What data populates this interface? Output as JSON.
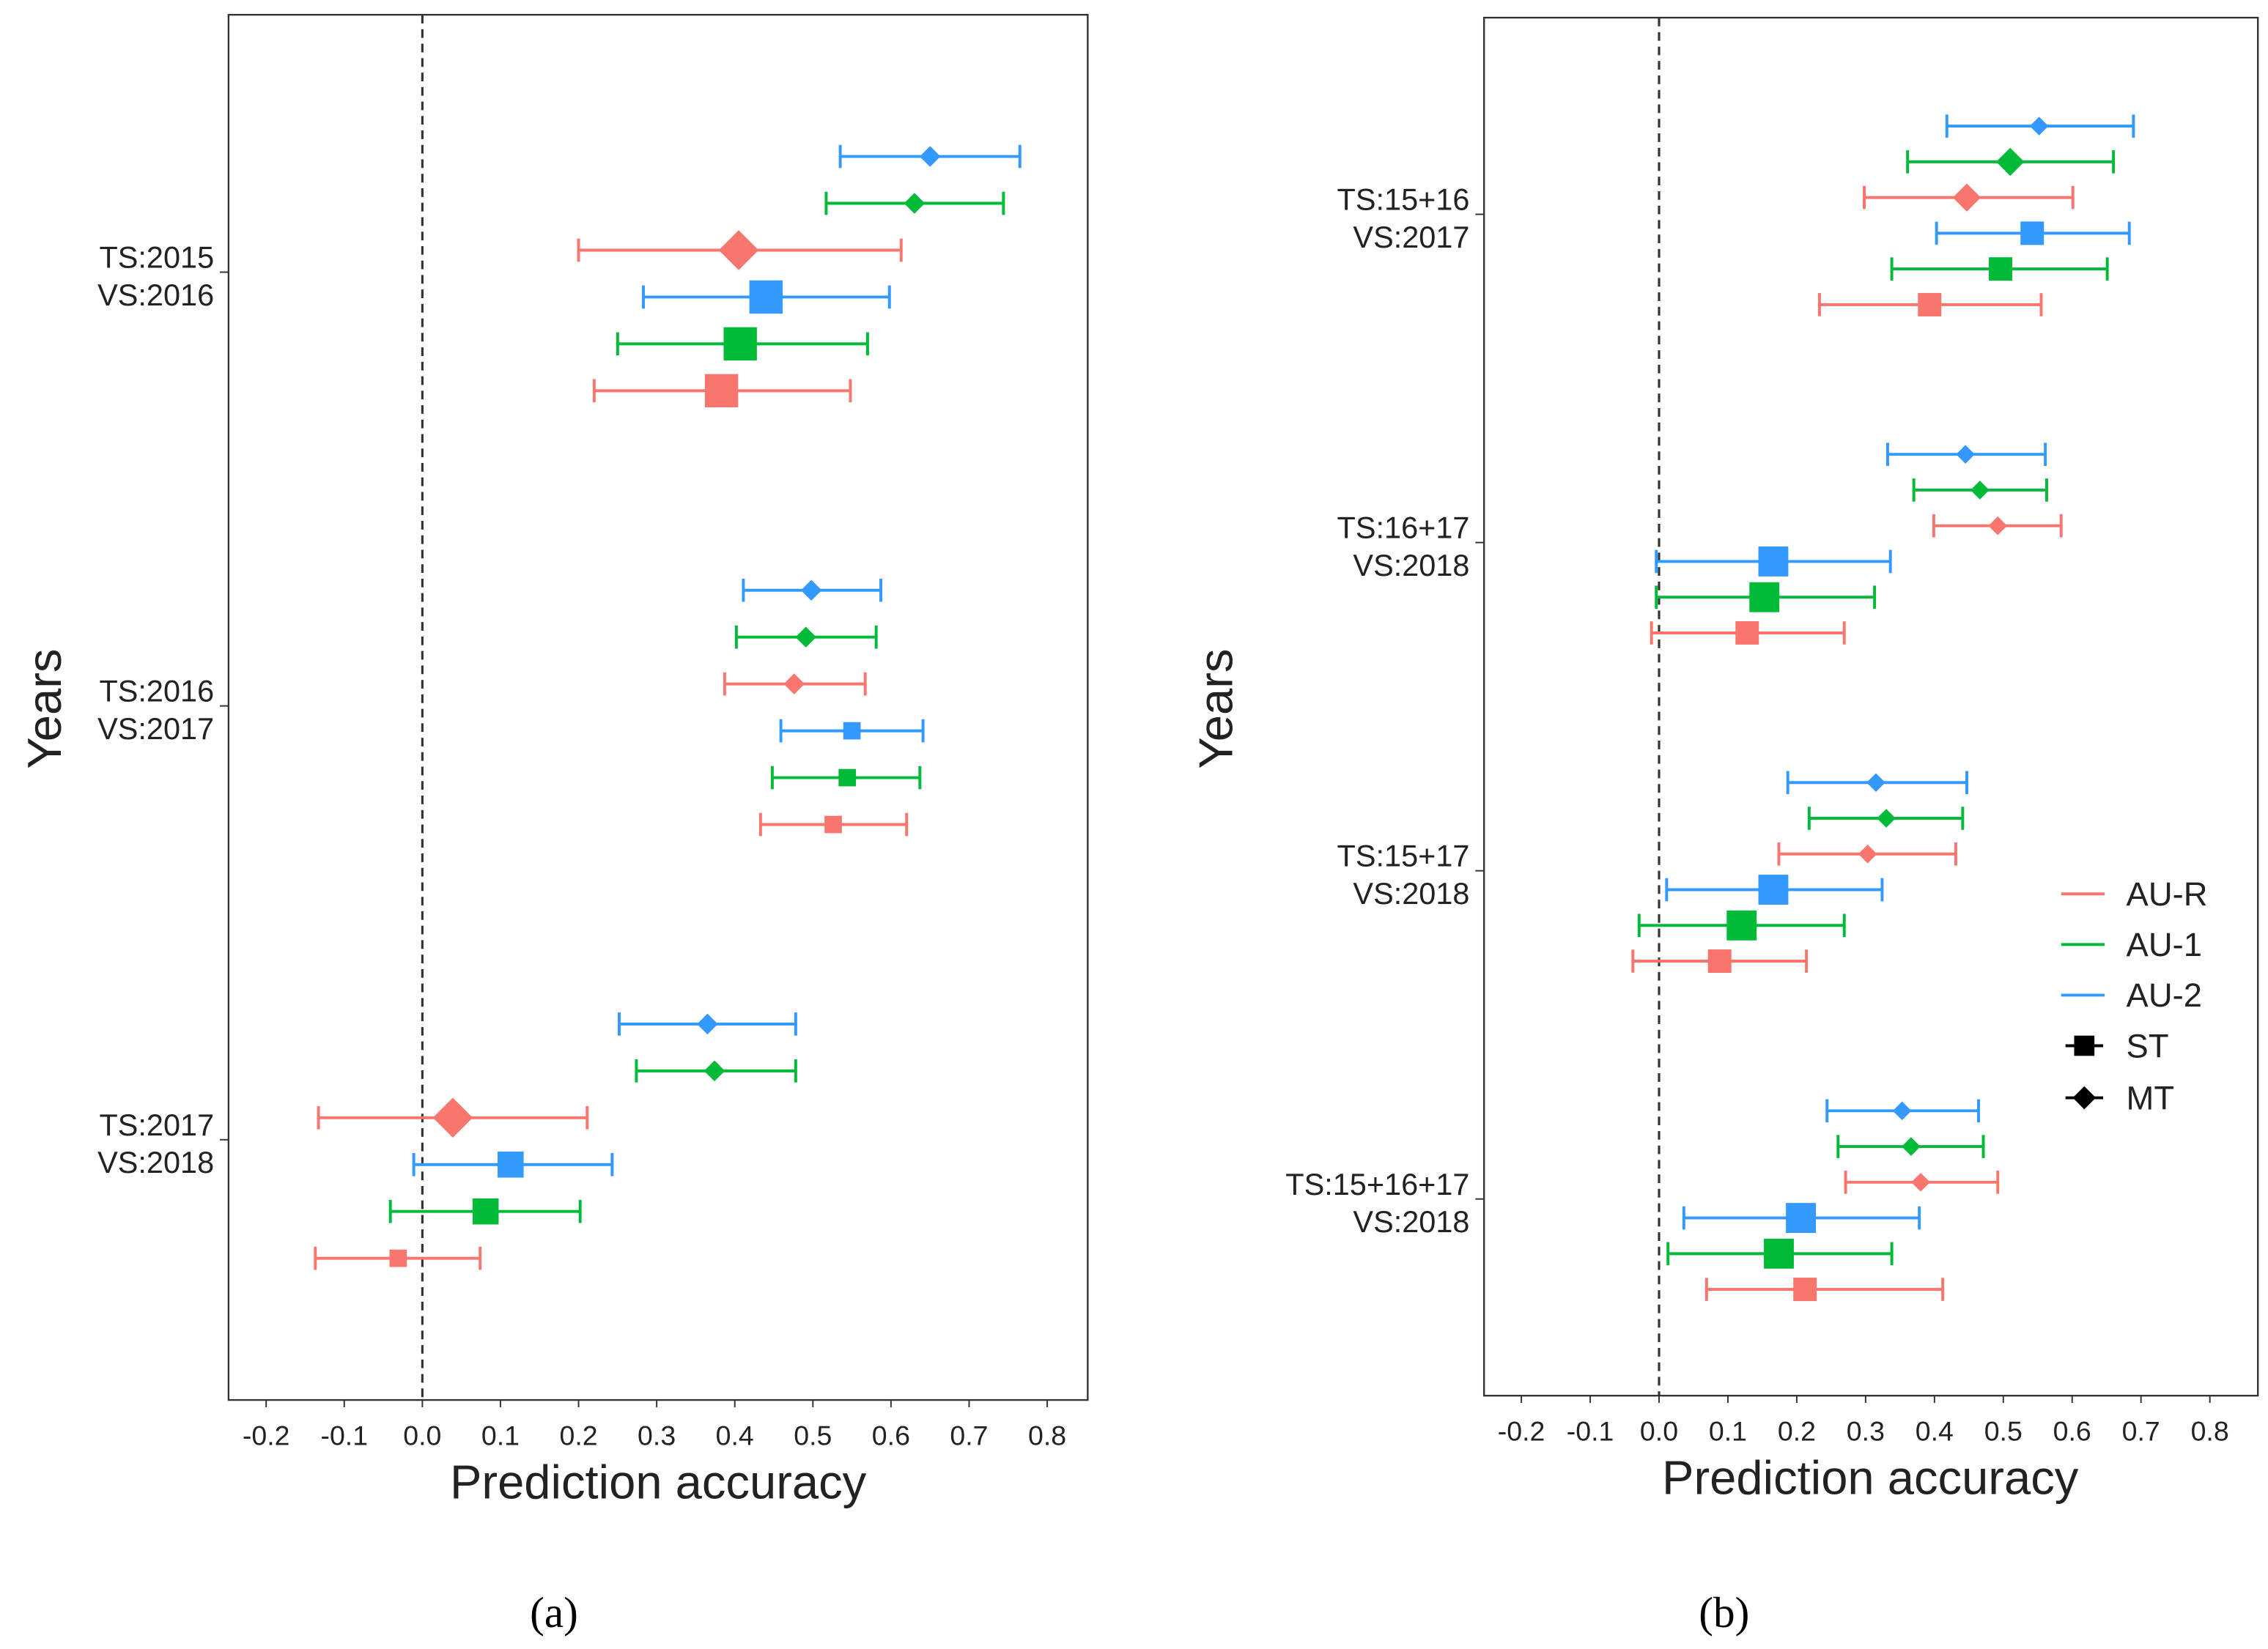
{
  "colors": {
    "AU-R": "#F8766D",
    "AU-1": "#00BA38",
    "AU-2": "#3399FF"
  },
  "legend": {
    "lines": [
      "AU-R",
      "AU-1",
      "AU-2"
    ],
    "shapes": [
      {
        "label": "ST",
        "shape": "square"
      },
      {
        "label": "MT",
        "shape": "diamond"
      }
    ]
  },
  "chart_data": [
    {
      "type": "scatter",
      "panel_label": "(a)",
      "xlabel": "Prediction accuracy",
      "ylabel": "Years",
      "xlim": [
        -0.25,
        0.83
      ],
      "xticks": [
        "-0.2",
        "-0.1",
        "0.0",
        "0.1",
        "0.2",
        "0.3",
        "0.4",
        "0.5",
        "0.6",
        "0.7",
        "0.8"
      ],
      "reference_line": 0,
      "groups": [
        {
          "label": [
            "TS:2015",
            "VS:2016"
          ],
          "points": [
            {
              "series": "AU-2",
              "model": "MT",
              "value": 0.65,
              "lo": 0.535,
              "hi": 0.765,
              "size": 1
            },
            {
              "series": "AU-1",
              "model": "MT",
              "value": 0.63,
              "lo": 0.517,
              "hi": 0.744,
              "size": 1
            },
            {
              "series": "AU-R",
              "model": "MT",
              "value": 0.405,
              "lo": 0.2,
              "hi": 0.613,
              "size": 3
            },
            {
              "series": "AU-2",
              "model": "ST",
              "value": 0.44,
              "lo": 0.283,
              "hi": 0.598,
              "size": 3
            },
            {
              "series": "AU-1",
              "model": "ST",
              "value": 0.407,
              "lo": 0.25,
              "hi": 0.57,
              "size": 3
            },
            {
              "series": "AU-R",
              "model": "ST",
              "value": 0.383,
              "lo": 0.22,
              "hi": 0.548,
              "size": 3
            }
          ]
        },
        {
          "label": [
            "TS:2016",
            "VS:2017"
          ],
          "points": [
            {
              "series": "AU-2",
              "model": "MT",
              "value": 0.498,
              "lo": 0.411,
              "hi": 0.587,
              "size": 1
            },
            {
              "series": "AU-1",
              "model": "MT",
              "value": 0.491,
              "lo": 0.402,
              "hi": 0.581,
              "size": 1
            },
            {
              "series": "AU-R",
              "model": "MT",
              "value": 0.476,
              "lo": 0.387,
              "hi": 0.567,
              "size": 1
            },
            {
              "series": "AU-2",
              "model": "ST",
              "value": 0.55,
              "lo": 0.459,
              "hi": 0.641,
              "size": 1
            },
            {
              "series": "AU-1",
              "model": "ST",
              "value": 0.544,
              "lo": 0.448,
              "hi": 0.637,
              "size": 1
            },
            {
              "series": "AU-R",
              "model": "ST",
              "value": 0.526,
              "lo": 0.433,
              "hi": 0.62,
              "size": 1
            }
          ]
        },
        {
          "label": [
            "TS:2017",
            "VS:2018"
          ],
          "points": [
            {
              "series": "AU-2",
              "model": "MT",
              "value": 0.365,
              "lo": 0.252,
              "hi": 0.478,
              "size": 1
            },
            {
              "series": "AU-1",
              "model": "MT",
              "value": 0.374,
              "lo": 0.274,
              "hi": 0.478,
              "size": 1
            },
            {
              "series": "AU-R",
              "model": "MT",
              "value": 0.039,
              "lo": -0.133,
              "hi": 0.211,
              "size": 3
            },
            {
              "series": "AU-2",
              "model": "ST",
              "value": 0.113,
              "lo": -0.011,
              "hi": 0.243,
              "size": 2
            },
            {
              "series": "AU-1",
              "model": "ST",
              "value": 0.081,
              "lo": -0.041,
              "hi": 0.202,
              "size": 2
            },
            {
              "series": "AU-R",
              "model": "ST",
              "value": -0.031,
              "lo": -0.137,
              "hi": 0.074,
              "size": 1
            }
          ]
        }
      ]
    },
    {
      "type": "scatter",
      "panel_label": "(b)",
      "xlabel": "Prediction accuracy",
      "ylabel": "Years",
      "xlim": [
        -0.25,
        0.85
      ],
      "xticks": [
        "-0.2",
        "-0.1",
        "0.0",
        "0.1",
        "0.2",
        "0.3",
        "0.4",
        "0.5",
        "0.6",
        "0.7",
        "0.8"
      ],
      "reference_line": 0,
      "groups": [
        {
          "label": [
            "TS:15+16",
            "VS:2017"
          ],
          "points": [
            {
              "series": "AU-2",
              "model": "MT",
              "value": 0.552,
              "lo": 0.418,
              "hi": 0.689,
              "size": 1
            },
            {
              "series": "AU-1",
              "model": "MT",
              "value": 0.51,
              "lo": 0.361,
              "hi": 0.66,
              "size": 2
            },
            {
              "series": "AU-R",
              "model": "MT",
              "value": 0.447,
              "lo": 0.298,
              "hi": 0.601,
              "size": 2
            },
            {
              "series": "AU-2",
              "model": "ST",
              "value": 0.542,
              "lo": 0.403,
              "hi": 0.683,
              "size": 2
            },
            {
              "series": "AU-1",
              "model": "ST",
              "value": 0.496,
              "lo": 0.338,
              "hi": 0.651,
              "size": 2
            },
            {
              "series": "AU-R",
              "model": "ST",
              "value": 0.393,
              "lo": 0.233,
              "hi": 0.555,
              "size": 2
            }
          ]
        },
        {
          "label": [
            "TS:16+17",
            "VS:2018"
          ],
          "points": [
            {
              "series": "AU-2",
              "model": "MT",
              "value": 0.445,
              "lo": 0.332,
              "hi": 0.561,
              "size": 1
            },
            {
              "series": "AU-1",
              "model": "MT",
              "value": 0.466,
              "lo": 0.37,
              "hi": 0.563,
              "size": 1
            },
            {
              "series": "AU-R",
              "model": "MT",
              "value": 0.492,
              "lo": 0.399,
              "hi": 0.584,
              "size": 1
            },
            {
              "series": "AU-2",
              "model": "ST",
              "value": 0.166,
              "lo": -0.004,
              "hi": 0.336,
              "size": 3
            },
            {
              "series": "AU-1",
              "model": "ST",
              "value": 0.153,
              "lo": -0.004,
              "hi": 0.313,
              "size": 3
            },
            {
              "series": "AU-R",
              "model": "ST",
              "value": 0.128,
              "lo": -0.011,
              "hi": 0.269,
              "size": 2
            }
          ]
        },
        {
          "label": [
            "TS:15+17",
            "VS:2018"
          ],
          "points": [
            {
              "series": "AU-2",
              "model": "MT",
              "value": 0.315,
              "lo": 0.187,
              "hi": 0.447,
              "size": 1
            },
            {
              "series": "AU-1",
              "model": "MT",
              "value": 0.33,
              "lo": 0.218,
              "hi": 0.441,
              "size": 1
            },
            {
              "series": "AU-R",
              "model": "MT",
              "value": 0.303,
              "lo": 0.174,
              "hi": 0.431,
              "size": 1
            },
            {
              "series": "AU-2",
              "model": "ST",
              "value": 0.166,
              "lo": 0.011,
              "hi": 0.324,
              "size": 3
            },
            {
              "series": "AU-1",
              "model": "ST",
              "value": 0.12,
              "lo": -0.029,
              "hi": 0.269,
              "size": 3
            },
            {
              "series": "AU-R",
              "model": "ST",
              "value": 0.088,
              "lo": -0.038,
              "hi": 0.214,
              "size": 2
            }
          ]
        },
        {
          "label": [
            "TS:15+16+17",
            "VS:2018"
          ],
          "points": [
            {
              "series": "AU-2",
              "model": "MT",
              "value": 0.353,
              "lo": 0.244,
              "hi": 0.464,
              "size": 1
            },
            {
              "series": "AU-1",
              "model": "MT",
              "value": 0.366,
              "lo": 0.26,
              "hi": 0.471,
              "size": 1
            },
            {
              "series": "AU-R",
              "model": "MT",
              "value": 0.38,
              "lo": 0.271,
              "hi": 0.492,
              "size": 1
            },
            {
              "series": "AU-2",
              "model": "ST",
              "value": 0.206,
              "lo": 0.036,
              "hi": 0.378,
              "size": 3
            },
            {
              "series": "AU-1",
              "model": "ST",
              "value": 0.174,
              "lo": 0.013,
              "hi": 0.338,
              "size": 3
            },
            {
              "series": "AU-R",
              "model": "ST",
              "value": 0.212,
              "lo": 0.069,
              "hi": 0.412,
              "size": 2
            }
          ]
        }
      ]
    }
  ]
}
